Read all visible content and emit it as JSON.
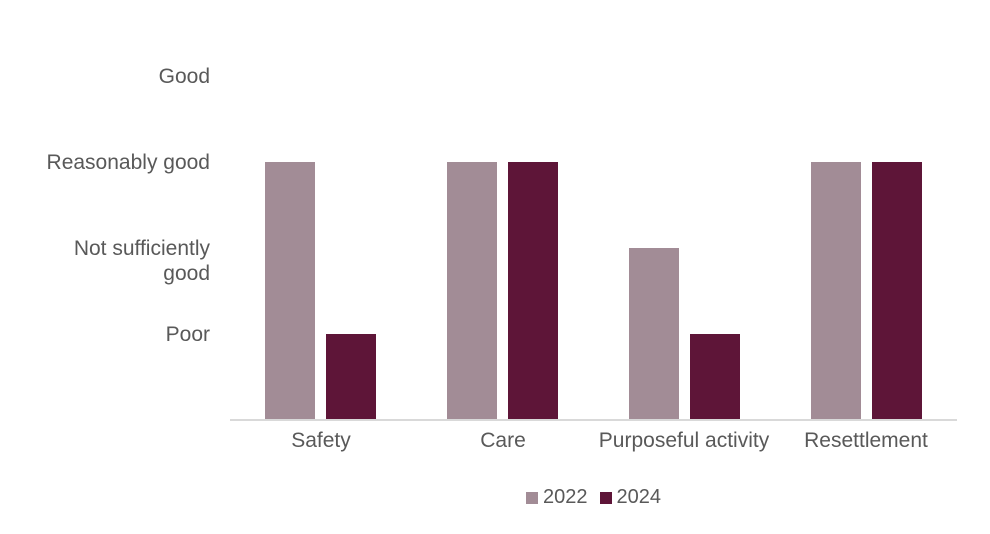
{
  "chart_data": {
    "type": "bar",
    "title": "",
    "categories": [
      "Safety",
      "Care",
      "Purposeful activity",
      "Resettlement"
    ],
    "series": [
      {
        "name": "2022",
        "color": "#A28C96",
        "values": [
          3,
          3,
          2,
          3
        ],
        "value_labels": [
          "Reasonably good",
          "Reasonably good",
          "Not sufficiently good",
          "Reasonably good"
        ]
      },
      {
        "name": "2024",
        "color": "#5E1538",
        "values": [
          1,
          3,
          1,
          3
        ],
        "value_labels": [
          "Poor",
          "Reasonably good",
          "Poor",
          "Reasonably good"
        ]
      }
    ],
    "y_axis": {
      "tick_labels": [
        "Poor",
        "Not sufficiently good",
        "Reasonably good",
        "Good"
      ],
      "tick_values": [
        1,
        2,
        3,
        4
      ],
      "ylim": [
        0,
        4.5
      ]
    },
    "x_axis": {
      "label": ""
    },
    "legend": {
      "position": "bottom",
      "entries": [
        "2022",
        "2024"
      ]
    },
    "grid": false,
    "colors": {
      "axis_line": "#d9d9d9",
      "text": "#595959",
      "background": "#ffffff"
    }
  }
}
